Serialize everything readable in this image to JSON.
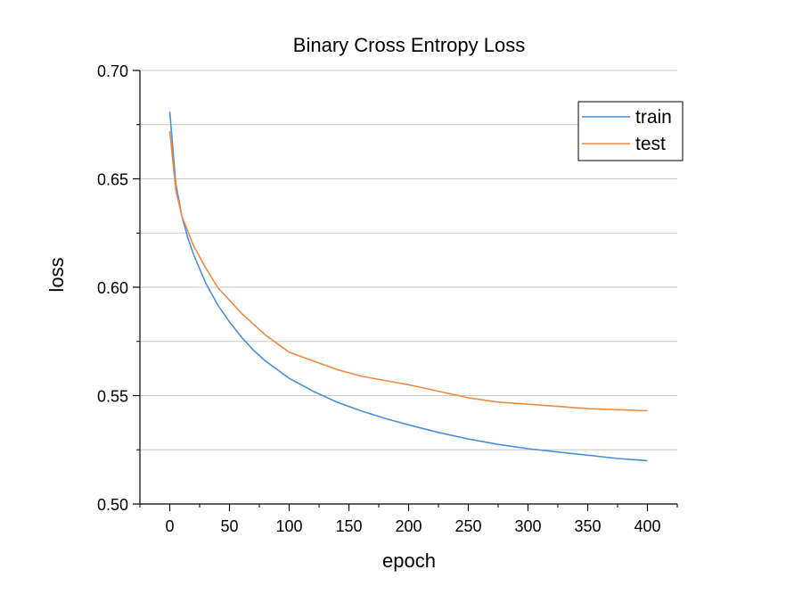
{
  "chart_data": {
    "type": "line",
    "title": "Binary Cross Entropy Loss",
    "xlabel": "epoch",
    "ylabel": "loss",
    "xlim": [
      -25,
      425
    ],
    "ylim": [
      0.5,
      0.7
    ],
    "xticks": [
      0,
      50,
      100,
      150,
      200,
      250,
      300,
      350,
      400
    ],
    "xtick_labels": [
      "0",
      "50",
      "100",
      "150",
      "200",
      "250",
      "300",
      "350",
      "400"
    ],
    "yticks": [
      0.5,
      0.55,
      0.6,
      0.65,
      0.7
    ],
    "ytick_labels": [
      "0.50",
      "0.55",
      "0.60",
      "0.65",
      "0.70"
    ],
    "grid": "horizontal",
    "legend_position": "top-right",
    "series": [
      {
        "name": "train",
        "color": "#4a8fdb",
        "x": [
          0,
          5,
          10,
          15,
          20,
          30,
          40,
          50,
          60,
          70,
          80,
          90,
          100,
          120,
          140,
          160,
          180,
          200,
          225,
          250,
          275,
          300,
          325,
          350,
          375,
          400
        ],
        "y": [
          0.681,
          0.648,
          0.633,
          0.623,
          0.615,
          0.602,
          0.592,
          0.584,
          0.577,
          0.571,
          0.566,
          0.562,
          0.558,
          0.552,
          0.547,
          0.543,
          0.5395,
          0.5365,
          0.533,
          0.53,
          0.5275,
          0.5255,
          0.524,
          0.5225,
          0.521,
          0.52
        ]
      },
      {
        "name": "test",
        "color": "#ee8a42",
        "x": [
          0,
          5,
          10,
          15,
          20,
          30,
          40,
          50,
          60,
          70,
          80,
          90,
          100,
          120,
          140,
          160,
          180,
          200,
          225,
          250,
          275,
          300,
          325,
          350,
          375,
          400
        ],
        "y": [
          0.672,
          0.645,
          0.633,
          0.626,
          0.619,
          0.609,
          0.6,
          0.594,
          0.588,
          0.583,
          0.578,
          0.574,
          0.57,
          0.566,
          0.562,
          0.559,
          0.557,
          0.555,
          0.552,
          0.549,
          0.547,
          0.546,
          0.545,
          0.544,
          0.5435,
          0.543
        ]
      }
    ]
  }
}
